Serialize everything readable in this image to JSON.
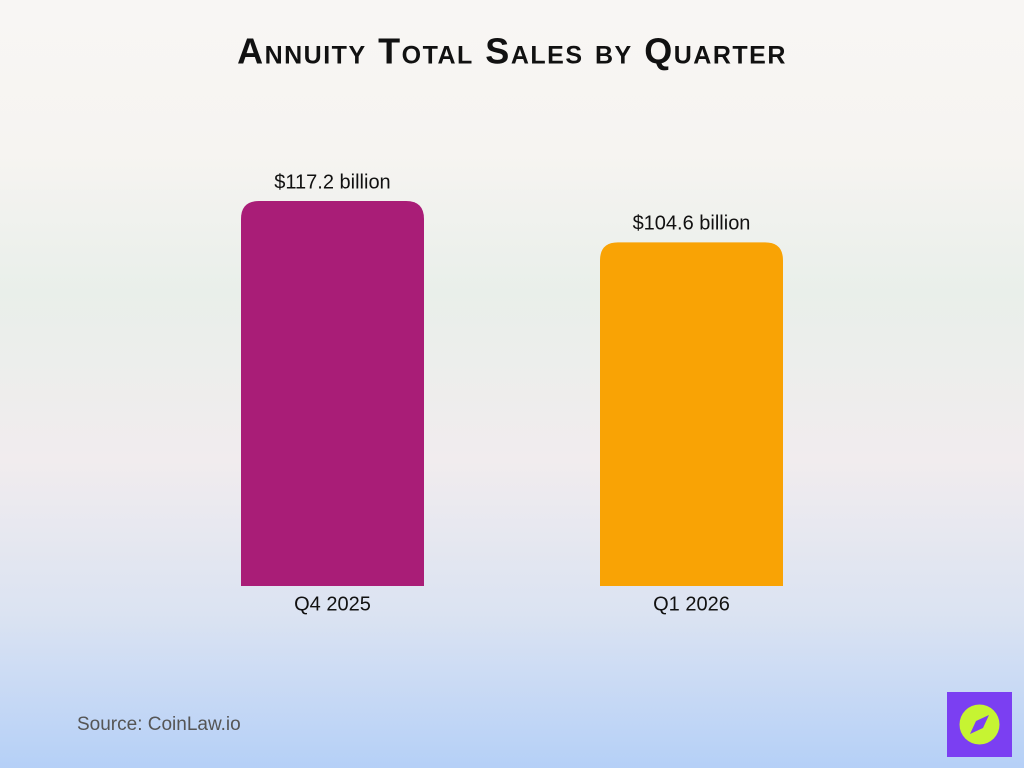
{
  "chart_data": {
    "type": "bar",
    "title": "Annuity Total Sales by Quarter",
    "categories": [
      "Q4 2025",
      "Q1 2026"
    ],
    "values": [
      117.2,
      104.6
    ],
    "value_labels": [
      "$117.2 billion",
      "$104.6 billion"
    ],
    "colors": [
      "#a91d77",
      "#f9a305"
    ],
    "source": "Source: CoinLaw.io"
  }
}
